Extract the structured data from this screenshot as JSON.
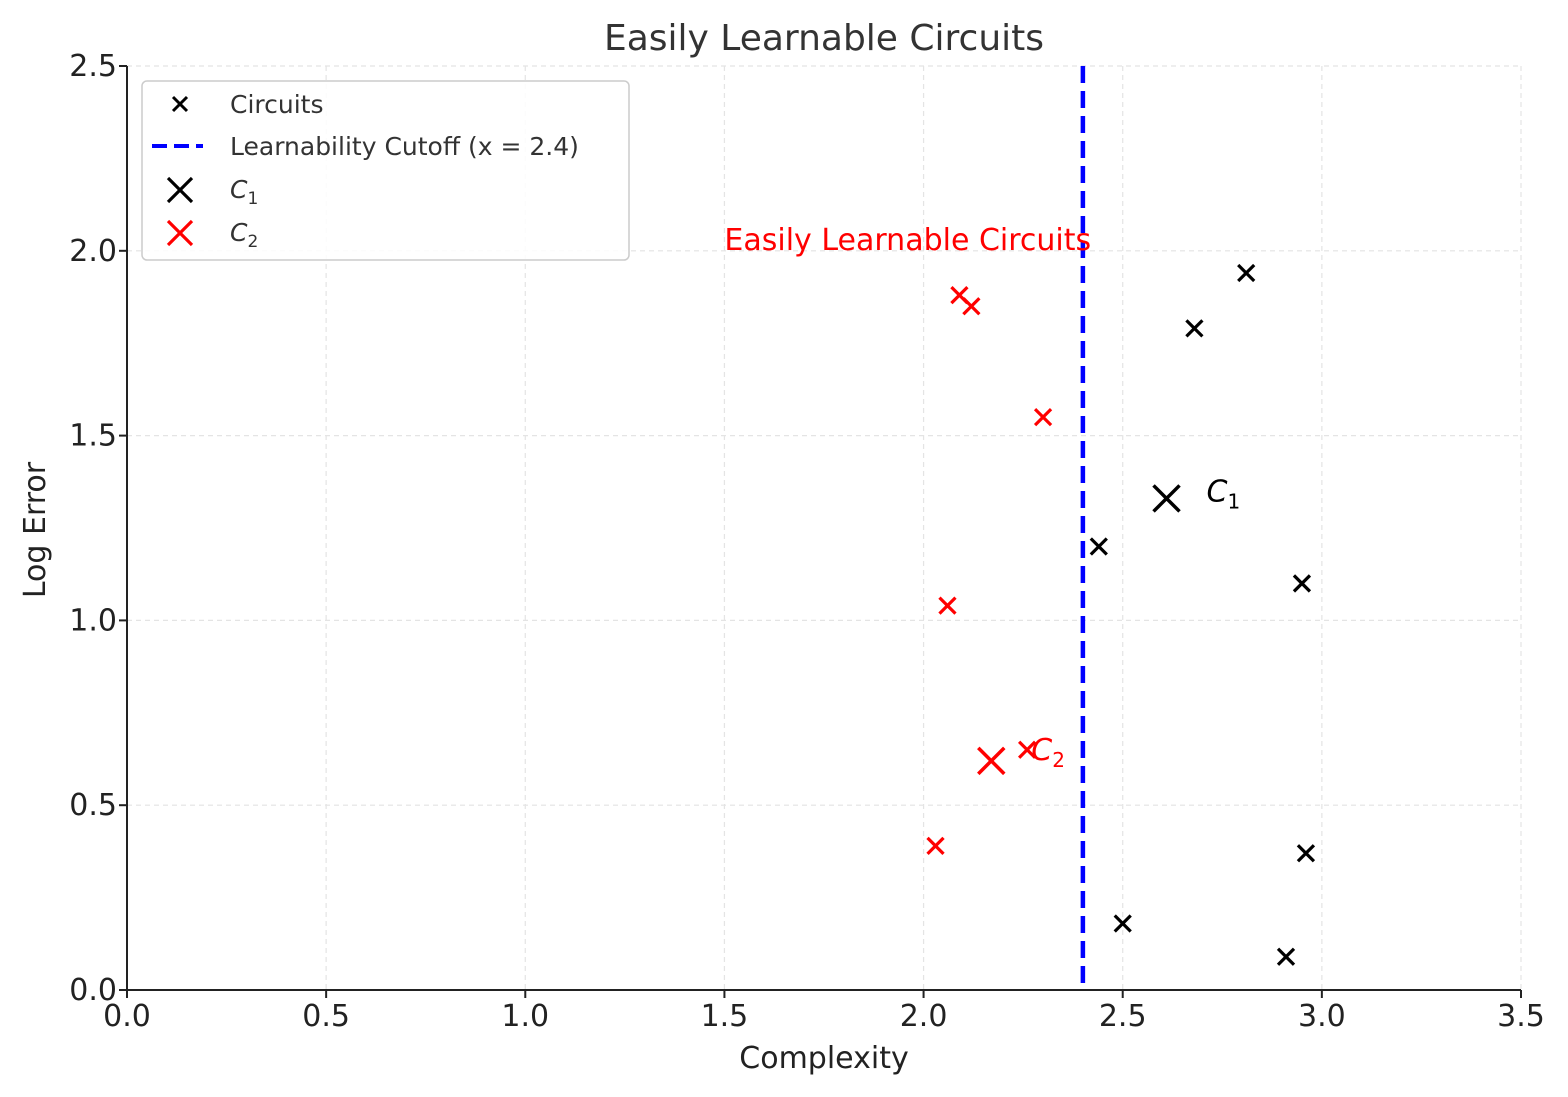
{
  "chart_data": {
    "type": "scatter",
    "title": "Easily Learnable Circuits",
    "xlabel": "Complexity",
    "ylabel": "Log Error",
    "xlim": [
      0,
      3.5
    ],
    "ylim": [
      0,
      2.5
    ],
    "xticks": [
      "0.0",
      "0.5",
      "1.0",
      "1.5",
      "2.0",
      "2.5",
      "3.0",
      "3.5"
    ],
    "yticks": [
      "0.0",
      "0.5",
      "1.0",
      "1.5",
      "2.0",
      "2.5"
    ],
    "grid": true,
    "legend_position": "top-left",
    "series": [
      {
        "name": "Circuits",
        "marker": "x",
        "color": "#000000",
        "points": [
          {
            "x": 2.81,
            "y": 1.94
          },
          {
            "x": 2.68,
            "y": 1.79
          },
          {
            "x": 2.44,
            "y": 1.2
          },
          {
            "x": 2.95,
            "y": 1.1
          },
          {
            "x": 2.96,
            "y": 0.37
          },
          {
            "x": 2.5,
            "y": 0.18
          },
          {
            "x": 2.91,
            "y": 0.09
          }
        ]
      },
      {
        "name": "Circuits",
        "marker": "x",
        "color": "#ff0000",
        "show_in_legend": false,
        "points": [
          {
            "x": 2.09,
            "y": 1.88
          },
          {
            "x": 2.12,
            "y": 1.85
          },
          {
            "x": 2.3,
            "y": 1.55
          },
          {
            "x": 2.06,
            "y": 1.04
          },
          {
            "x": 2.26,
            "y": 0.65
          },
          {
            "x": 2.03,
            "y": 0.39
          }
        ]
      }
    ],
    "cutoff": {
      "name": "Learnability Cutoff (x = 2.4)",
      "x": 2.4,
      "color": "#0000ff",
      "style": "dashed"
    },
    "highlights": [
      {
        "name": "C",
        "subscript": "1",
        "x": 2.61,
        "y": 1.33,
        "color": "#000000",
        "label": "C",
        "label_sub": "1"
      },
      {
        "name": "C",
        "subscript": "2",
        "x": 2.17,
        "y": 0.62,
        "color": "#ff0000",
        "label": "C",
        "label_sub": "2"
      }
    ],
    "annotations": [
      {
        "text": "Easily Learnable Circuits",
        "x": 1.5,
        "y": 2.0,
        "color": "#ff0000"
      }
    ]
  }
}
